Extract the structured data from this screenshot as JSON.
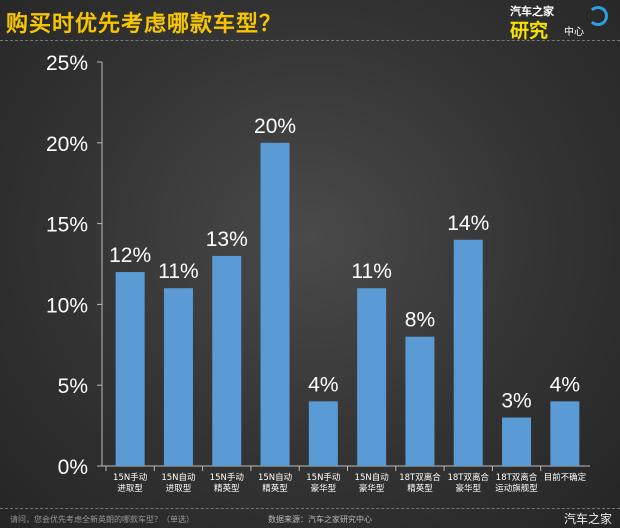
{
  "header": {
    "title": "购买时优先考虑哪款车型？",
    "logo_text": [
      "汽车之家",
      "研究",
      "中心"
    ]
  },
  "footer": {
    "question": "请问，您会优先考虑全新英朗的哪款车型？（单选）",
    "source": "数据来源：汽车之家研究中心",
    "brand": "汽车之家"
  },
  "chart_data": {
    "type": "bar",
    "title": "购买时优先考虑哪款车型？",
    "categories": [
      [
        "15N手动",
        "进取型"
      ],
      [
        "15N自动",
        "进取型"
      ],
      [
        "15N手动",
        "精英型"
      ],
      [
        "15N自动",
        "精英型"
      ],
      [
        "15N手动",
        "豪华型"
      ],
      [
        "15N自动",
        "豪华型"
      ],
      [
        "18T双离合",
        "精英型"
      ],
      [
        "18T双离合",
        "豪华型"
      ],
      [
        "18T双离合",
        "运动旗舰型"
      ],
      [
        "目前不确定",
        ""
      ]
    ],
    "values": [
      12,
      11,
      13,
      20,
      4,
      11,
      8,
      14,
      3,
      4
    ],
    "data_labels": [
      "12%",
      "11%",
      "13%",
      "20%",
      "4%",
      "11%",
      "8%",
      "14%",
      "3%",
      "4%"
    ],
    "yticks": [
      "0%",
      "5%",
      "10%",
      "15%",
      "20%",
      "25%"
    ],
    "ylim": [
      0,
      25
    ],
    "grid": false,
    "bar_color": "#5b9bd5",
    "title_color": "#f7c600"
  }
}
